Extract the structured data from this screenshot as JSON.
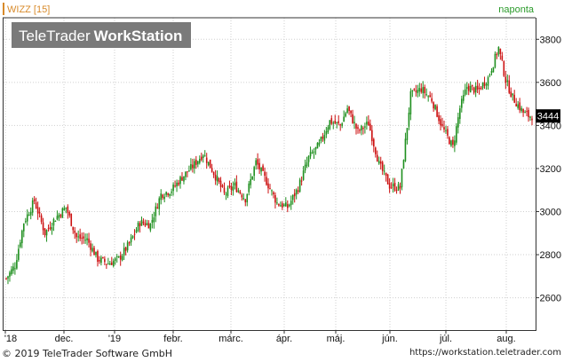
{
  "header": {
    "symbol_label": "WIZZ [15]",
    "period_label": "naponta",
    "watermark_light": "TeleTrader",
    "watermark_bold": "WorkStation"
  },
  "footer": {
    "copyright": "© 2019 TeleTrader Software GmbH",
    "url": "https://workstation.teletrader.com"
  },
  "colors": {
    "up": "#1f8f1f",
    "down": "#cc1111",
    "grid": "#cfcfcf",
    "axis": "#333333",
    "symbol_label": "#d88a2a",
    "period_label": "#2a9a2a",
    "watermark_bg": "#7a7a7a"
  },
  "chart_data": {
    "type": "candlestick",
    "title": "WIZZ [15]",
    "interval": "naponta",
    "x_tick_labels": [
      "'18",
      "dec.",
      "'19",
      "febr.",
      "márc.",
      "ápr.",
      "máj.",
      "jún.",
      "júl.",
      "aug."
    ],
    "y_ticks": [
      2600,
      2800,
      3000,
      3200,
      3400,
      3600,
      3800
    ],
    "ylim": [
      2450,
      3900
    ],
    "last_price": 3444,
    "grid": true,
    "anchor_closes": [
      [
        0,
        2690
      ],
      [
        5,
        2750
      ],
      [
        10,
        2950
      ],
      [
        16,
        3050
      ],
      [
        22,
        2900
      ],
      [
        28,
        2970
      ],
      [
        34,
        3020
      ],
      [
        40,
        2880
      ],
      [
        46,
        2870
      ],
      [
        52,
        2780
      ],
      [
        58,
        2760
      ],
      [
        64,
        2780
      ],
      [
        70,
        2850
      ],
      [
        76,
        2950
      ],
      [
        82,
        2940
      ],
      [
        88,
        3080
      ],
      [
        94,
        3100
      ],
      [
        100,
        3160
      ],
      [
        106,
        3210
      ],
      [
        112,
        3270
      ],
      [
        118,
        3180
      ],
      [
        124,
        3080
      ],
      [
        130,
        3120
      ],
      [
        136,
        3060
      ],
      [
        142,
        3230
      ],
      [
        148,
        3140
      ],
      [
        154,
        3040
      ],
      [
        160,
        3020
      ],
      [
        166,
        3110
      ],
      [
        172,
        3250
      ],
      [
        178,
        3310
      ],
      [
        184,
        3420
      ],
      [
        190,
        3400
      ],
      [
        194,
        3480
      ],
      [
        200,
        3370
      ],
      [
        206,
        3410
      ],
      [
        212,
        3220
      ],
      [
        218,
        3120
      ],
      [
        224,
        3110
      ],
      [
        230,
        3540
      ],
      [
        236,
        3570
      ],
      [
        242,
        3520
      ],
      [
        248,
        3390
      ],
      [
        254,
        3300
      ],
      [
        258,
        3480
      ],
      [
        262,
        3580
      ],
      [
        268,
        3560
      ],
      [
        274,
        3620
      ],
      [
        280,
        3760
      ],
      [
        284,
        3610
      ],
      [
        288,
        3530
      ],
      [
        294,
        3460
      ],
      [
        297,
        3444
      ]
    ]
  }
}
